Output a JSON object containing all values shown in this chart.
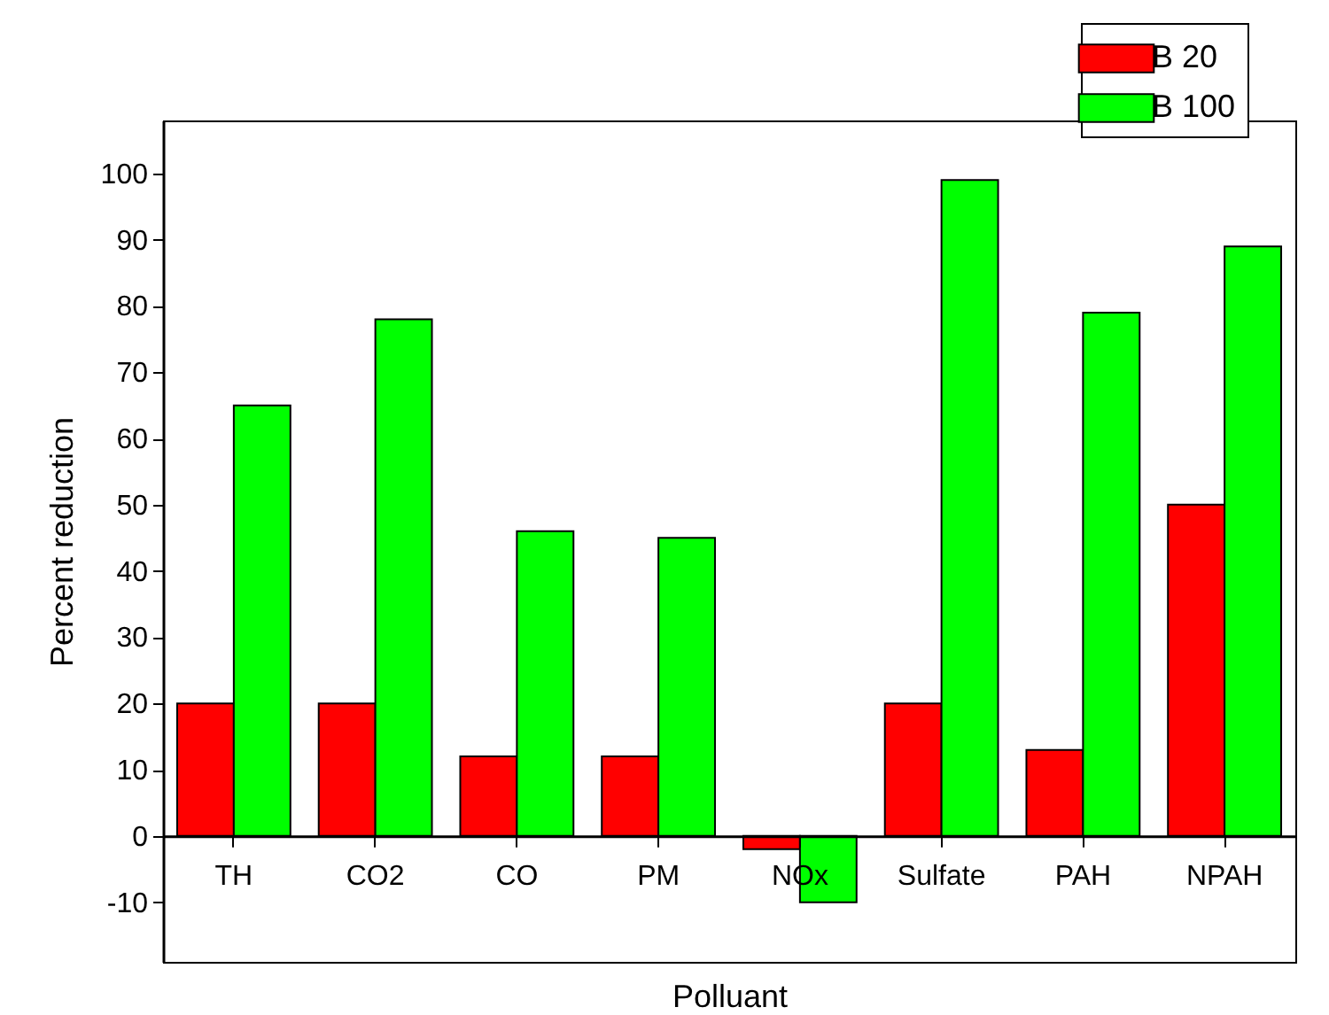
{
  "chart_data": {
    "type": "bar",
    "xlabel": "Polluant",
    "ylabel": "Percent reduction",
    "categories": [
      "TH",
      "CO2",
      "CO",
      "PM",
      "NOx",
      "Sulfate",
      "PAH",
      "NPAH"
    ],
    "series": [
      {
        "name": "B 20",
        "color": "#ff0000",
        "values": [
          20,
          20,
          12,
          12,
          -2,
          20,
          13,
          50
        ]
      },
      {
        "name": "B 100",
        "color": "#00ff00",
        "values": [
          65,
          78,
          46,
          45,
          -10,
          99,
          79,
          89
        ]
      }
    ],
    "ylim": [
      -19,
      108
    ],
    "yticks": [
      -10,
      0,
      10,
      20,
      30,
      40,
      50,
      60,
      70,
      80,
      90,
      100
    ],
    "grid": false,
    "legend": "top right"
  }
}
